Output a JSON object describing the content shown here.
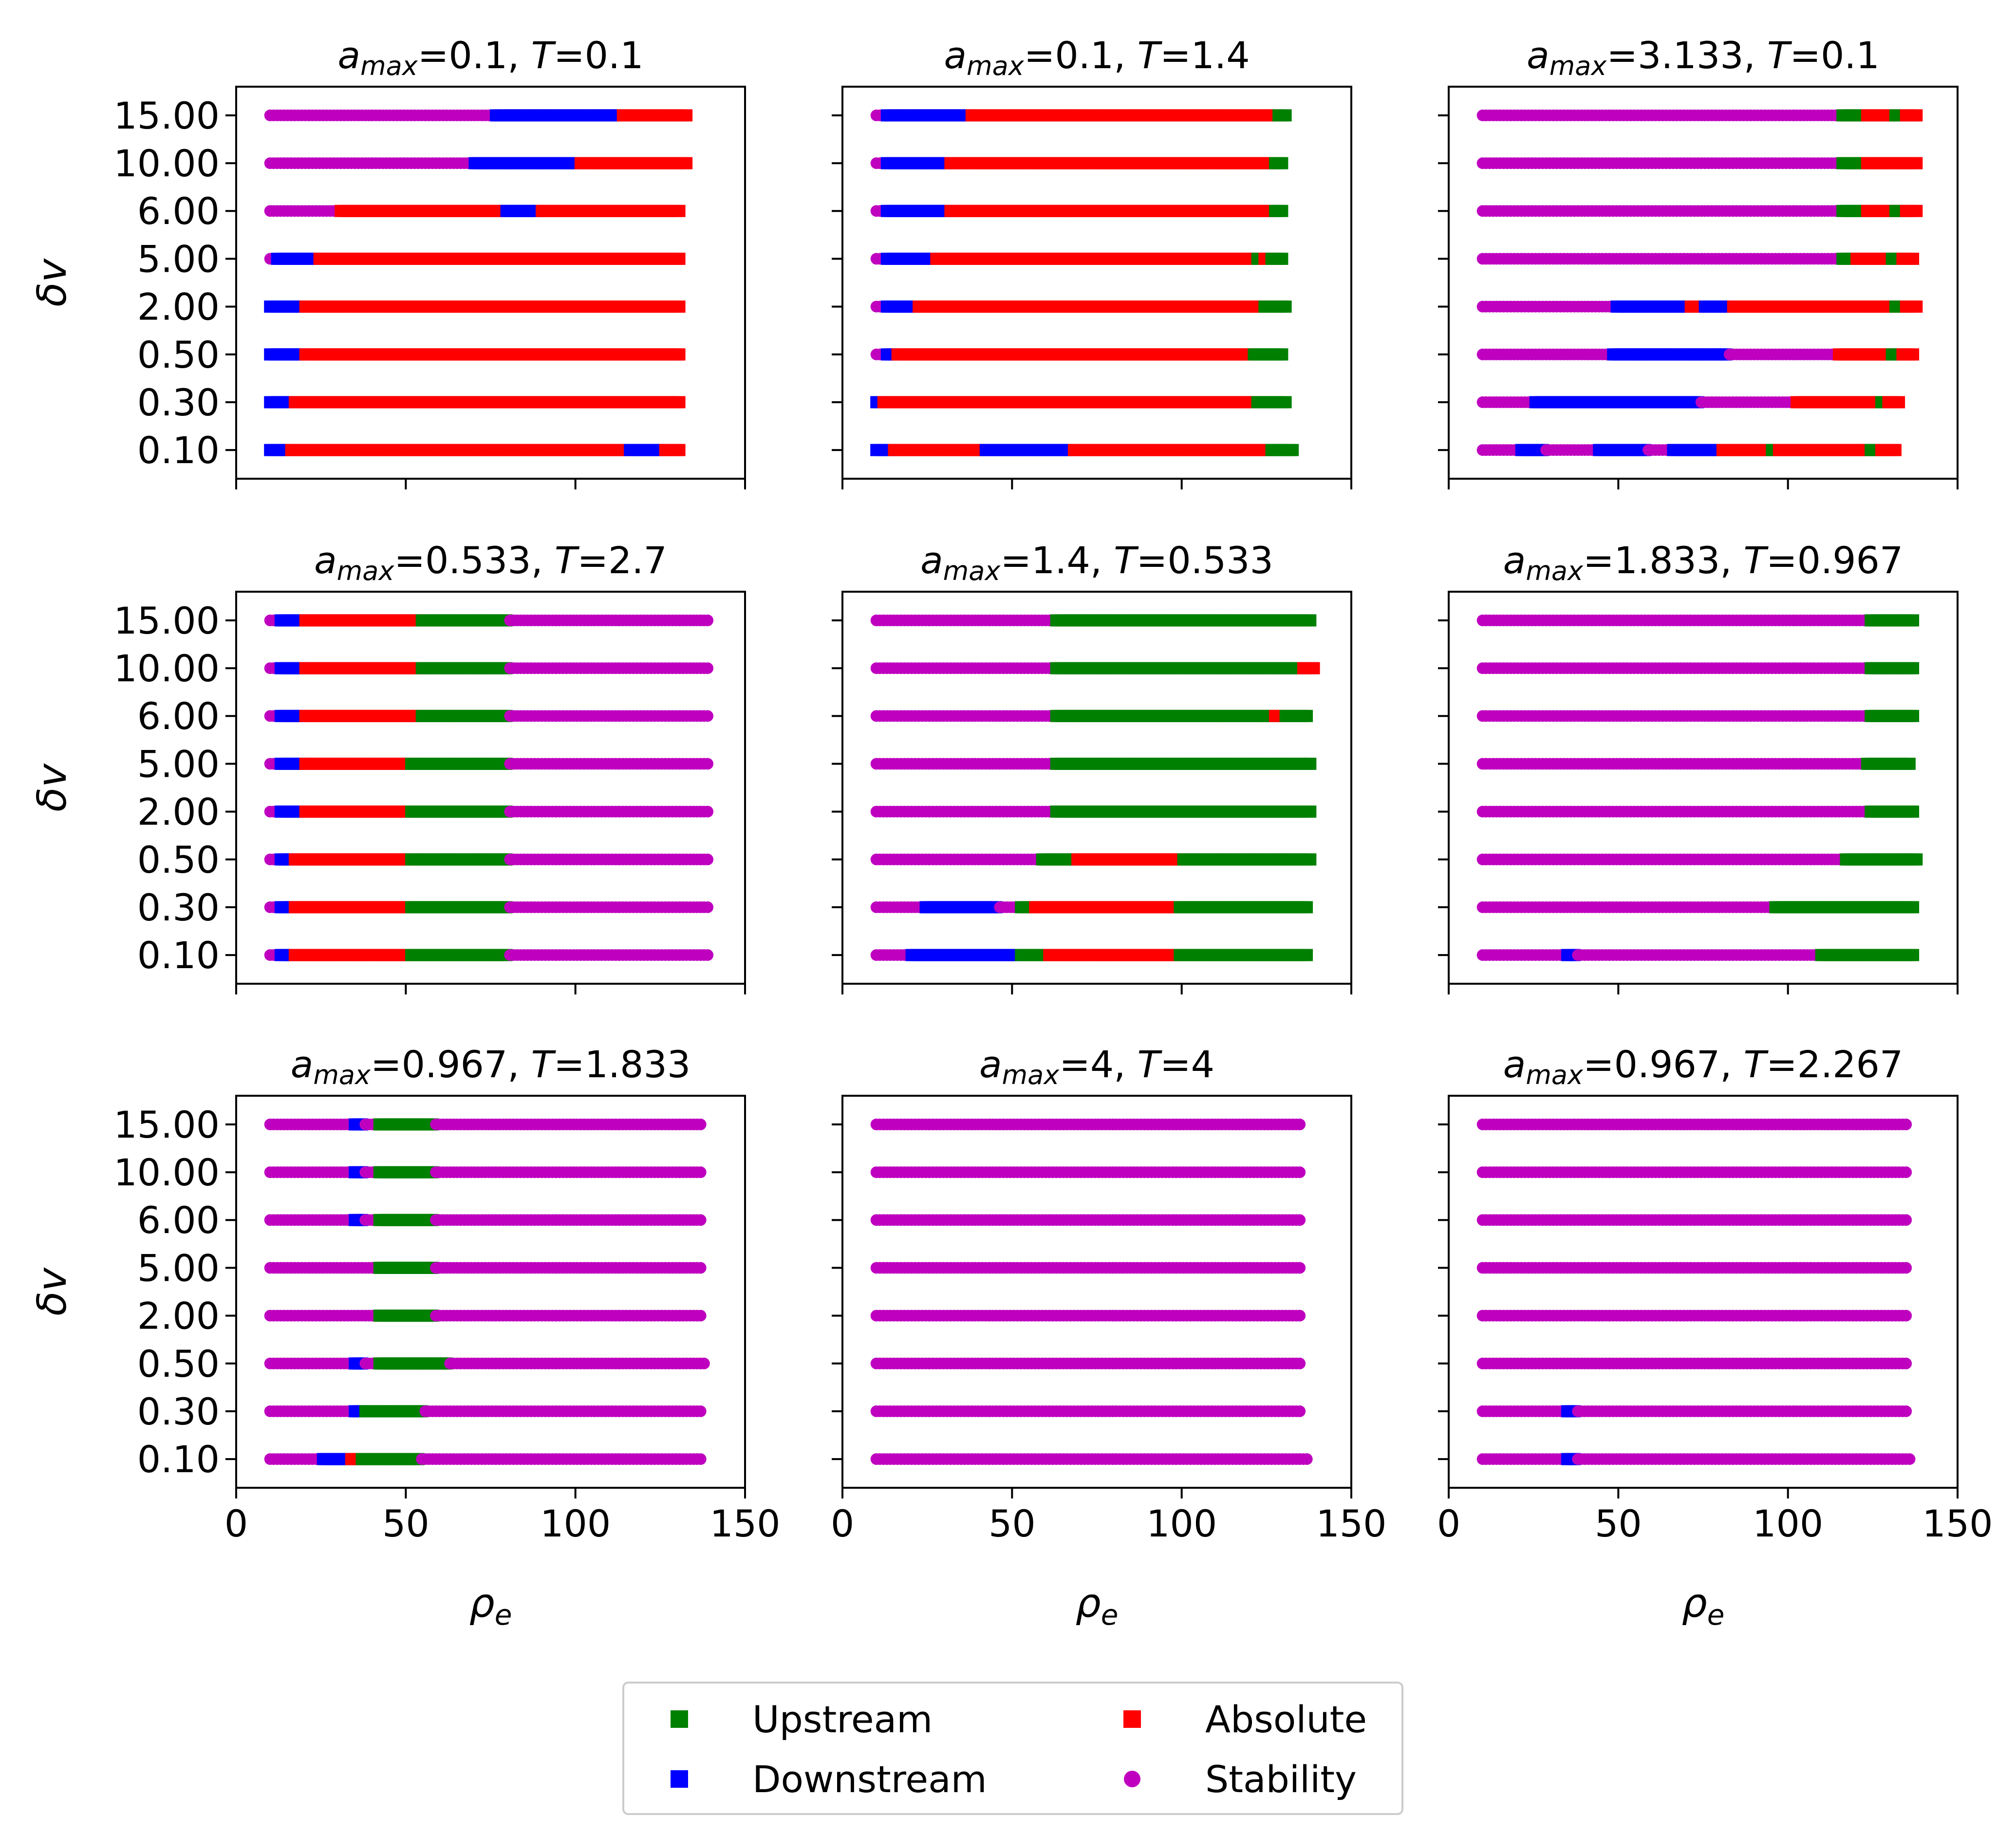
{
  "legend": {
    "columns": 2,
    "items": [
      {
        "label": "Upstream",
        "marker": "square",
        "color": "#008000"
      },
      {
        "label": "Absolute",
        "marker": "square",
        "color": "#ff0000"
      },
      {
        "label": "Downstream",
        "marker": "square",
        "color": "#0000ff"
      },
      {
        "label": "Stability",
        "marker": "circle",
        "color": "#bf00bf"
      }
    ],
    "placement": "bottom-center"
  },
  "chart_data": [
    {
      "type": "scatter",
      "title_var": "a",
      "title_sub": "max",
      "title_a": "0.1",
      "title_tvar": "T",
      "title_t": "0.1",
      "xlabel": "ρ",
      "xlabel_sub": "e",
      "ylabel": "δv",
      "show_xlabel": false,
      "show_xticklabels": false,
      "show_ylabel": true,
      "show_yticklabels": true,
      "rows": [
        "DDDDDDAAAAAAAAAAAAAAAAAAAAAAAAAAAAAAAAAAAAAAAAAAAAAAAAAAAAAAAAAAAAAAAAAAAAAAAAAAAAAAAAAAAAAAAAAAAAAAAADDDDDDDDDDAAAAA",
        "DDDDDDDAAAAAAAAAAAAAAAAAAAAAAAAAAAAAAAAAAAAAAAAAAAAAAAAAAAAAAAAAAAAAAAAAAAAAAAAAAAAAAAAAAAAAAAAAAAAAAAAAAAAAAAAAAAAAA",
        "DDDDDDDDDDAAAAAAAAAAAAAAAAAAAAAAAAAAAAAAAAAAAAAAAAAAAAAAAAAAAAAAAAAAAAAAAAAAAAAAAAAAAAAAAAAAAAAAAAAAAAAAAAAAAAAAAAAAA",
        "DDDDDDDDDDAAAAAAAAAAAAAAAAAAAAAAAAAAAAAAAAAAAAAAAAAAAAAAAAAAAAAAAAAAAAAAAAAAAAAAAAAAAAAAAAAAAAAAAAAAAAAAAAAAAAAAAAAAA",
        "SSDDDDDDDDDDDDAAAAAAAAAAAAAAAAAAAAAAAAAAAAAAAAAAAAAAAAAAAAAAAAAAAAAAAAAAAAAAAAAAAAAAAAAAAAAAAAAAAAAAAAAAAAAAAAAAAAAAA",
        "SSSSSSSSSSSSSSSSSSSSAAAAAAAAAAAAAAAAAAAAAAAAAAAAAAAAAAAAAAAAAAAAAAADDDDDDDDDDAAAAAAAAAAAAAAAAAAAAAAAAAAAAAAAAAAAAAAAA",
        "SSSSSSSSSSSSSSSSSSSSSSSSSSSSSSSSSSSSSSSSSSSSSSSSSSSSSSSSSSDDDDDDDDDDDDDDDDDDDDDDDDDDDDDDAAAAAAAAAAAAAAAAAAAAAAAAAAAAAAA",
        "SSSSSSSSSSSSSSSSSSSSSSSSSSSSSSSSSSSSSSSSSSSSSSSSSSSSSSSSSSSSSSSSDDDDDDDDDDDDDDDDDDDDDDDDDDDDDDDDDDDDAAAAAAAAAAAAAAAAAAA"
      ]
    },
    {
      "type": "scatter",
      "title_var": "a",
      "title_sub": "max",
      "title_a": "0.1",
      "title_tvar": "T",
      "title_t": "1.4",
      "xlabel": "ρ",
      "xlabel_sub": "e",
      "ylabel": "δv",
      "show_xlabel": false,
      "show_xticklabels": false,
      "show_ylabel": false,
      "show_yticklabels": false,
      "rows": [
        "DDDDDAAAAAAAAAAAAAAAAAAAAAAAAAADDDDDDDDDDDDDDDDDDDDDDDDDAAAAAAAAAAAAAAAAAAAAAAAAAAAAAAAAAAAAAAAAAAAAAAAAAAAAAAAAUUUUUUU",
        "DDAAAAAAAAAAAAAAAAAAAAAAAAAAAAAAAAAAAAAAAAAAAAAAAAAAAAAAAAAAAAAAAAAAAAAAAAAAAAAAAAAAAAAAAAAAAAAAAAAAAAAAAAAAUUUUUUUUU",
        "SSSDDDAAAAAAAAAAAAAAAAAAAAAAAAAAAAAAAAAAAAAAAAAAAAAAAAAAAAAAAAAAAAAAAAAAAAAAAAAAAAAAAAAAAAAAAAAAAAAAAAAAAAAUUUUUUUUU",
        "SSSDDDDDDDDDAAAAAAAAAAAAAAAAAAAAAAAAAAAAAAAAAAAAAAAAAAAAAAAAAAAAAAAAAAAAAAAAAAAAAAAAAAAAAAAAAAAAAAAAAAAAAAAAAAUUUUUUU",
        "SSSDDDDDDDDDDDDDDAAAAAAAAAAAAAAAAAAAAAAAAAAAAAAAAAAAAAAAAAAAAAAAAAAAAAAAAAAAAAAAAAAAAAAAAAAAAAAAAAAAAAAAAAAAUUAAUUUU",
        "SSSDDDDDDDDDDDDDDDDDDAAAAAAAAAAAAAAAAAAAAAAAAAAAAAAAAAAAAAAAAAAAAAAAAAAAAAAAAAAAAAAAAAAAAAAAAAAAAAAAAAAAAAAAAAAAAUUU",
        "SSSDDDDDDDDDDDDDDDDDDAAAAAAAAAAAAAAAAAAAAAAAAAAAAAAAAAAAAAAAAAAAAAAAAAAAAAAAAAAAAAAAAAAAAAAAAAAAAAAAAAAAAAAAAAAAAUUU",
        "SSSDDDDDDDDDDDDDDDDDDDDDDDDAAAAAAAAAAAAAAAAAAAAAAAAAAAAAAAAAAAAAAAAAAAAAAAAAAAAAAAAAAAAAAAAAAAAAAAAAAAAAAAAAAAAAAAUUU"
      ]
    },
    {
      "type": "scatter",
      "title_var": "a",
      "title_sub": "max",
      "title_a": "3.133",
      "title_tvar": "T",
      "title_t": "0.1",
      "xlabel": "ρ",
      "xlabel_sub": "e",
      "ylabel": "δv",
      "show_xlabel": false,
      "show_xticklabels": false,
      "show_ylabel": false,
      "show_yticklabels": false,
      "rows": [
        "SSSSSSSSSSSDDDDDDDSSSSSSSSSSSSSSSDDDDDDDDDDDDDDSSSSSSSDDDDDDDDDDDDDDAAAAAAAAAAAAAAUUAAAAAAAAAAAAAAAAAAAAAAAAAAUUUAAAAA",
        "SSSSSSSSSSSSSSSDDDDDDDDDDDDDDDDDDDDDDDDDDDDDDDDDDDDDDDDDDDDDDDSSSSSSSSSSSSSSSSSSSSSSSSSSSAAAAAAAAAAAAAAAAAAAAAAAAUUAAAA",
        "SSSSSSSSSSSSSSSSSSSSSSSSSSSSSSSSSSSSSDDDDDDDDDDDDDDDDDDDDDDDDDDDDDDDDDSSSSSSSSSSSSSSSSSSSSSSSSSSSSSSSAAAAAAAAAAAAAAAUUUAAAA",
        "SSSSSSSSSSSSSSSSSSSSSSSSSSSSSSSSSSSSSSDDDDDDDDDDDDDDDDDDDDDAAAADDDDDDDDAAAAAAAAAAAAAAAAAAAAAAAAAAAAAAAAAAAAAAAAAAAAAAUUUAAAA",
        "SSSSSSSSSSSSSSSSSSSSSSSSSSSSSSSSSSSSSSSSSSSSSSSSSSSSSSSSSSSSSSSSSSSSSSSSSSSSSSSSSSSSSSSSSSSSSSSSSSSSSSUUUUAAAAAAAAAAUUUAAAA",
        "SSSSSSSSSSSSSSSSSSSSSSSSSSSSSSSSSSSSSSSSSSSSSSSSSSSSSSSSSSSSSSSSSSSSSSSSSSSSSSSSSSSSSSSSSSSSSSSSSSSSSSUUUUUUUAAAAAAAAUUUAAAA",
        "SSSSSSSSSSSSSSSSSSSSSSSSSSSSSSSSSSSSSSSSSSSSSSSSSSSSSSSSSSSSSSSSSSSSSSSSSSSSSSSSSSSSSSSSSSSSSSSSSSSSSSUUUUUUUAAAAAAAAAAAAAAA",
        "SSSSSSSSSSSSSSSSSSSSSSSSSSSSSSSSSSSSSSSSSSSSSSSSSSSSSSSSSSSSSSSSSSSSSSSSSSSSSSSSSSSSSSSSSSSSSSSSSSSSSSUUUUUUUAAAAAAAAUUUAAAA"
      ]
    },
    {
      "type": "scatter",
      "title_var": "a",
      "title_sub": "max",
      "title_a": "0.533",
      "title_tvar": "T",
      "title_t": "2.7",
      "xlabel": "ρ",
      "xlabel_sub": "e",
      "ylabel": "δv",
      "show_xlabel": false,
      "show_xticklabels": false,
      "show_ylabel": true,
      "show_yticklabels": true,
      "rows": [
        "SSSDDDDAAAAAAAAAAAAAAAAAAAAAAAAAAAAAAAAAUUUUUUUUUUUUUUUUUUUUUUUUUUUUSSSSSSSSSSSSSSSSSSSSSSSSSSSSSSSSSSSSSSSSSSSSSSSSSSSSSSSSS",
        "SSSDDDDAAAAAAAAAAAAAAAAAAAAAAAAAAAAAAAAAUUUUUUUUUUUUUUUUUUUUUUUUUUUUSSSSSSSSSSSSSSSSSSSSSSSSSSSSSSSSSSSSSSSSSSSSSSSSSSSSSSSSS",
        "SSSDDDDAAAAAAAAAAAAAAAAAAAAAAAAAAAAAAAAAUUUUUUUUUUUUUUUUUUUUUUUUUUUUSSSSSSSSSSSSSSSSSSSSSSSSSSSSSSSSSSSSSSSSSSSSSSSSSSSSSSSSS",
        "SSSDDDDDDDAAAAAAAAAAAAAAAAAAAAAAAAAAAAAAUUUUUUUUUUUUUUUUUUUUUUUUUUUUSSSSSSSSSSSSSSSSSSSSSSSSSSSSSSSSSSSSSSSSSSSSSSSSSSSSSSSSS",
        "SSSDDDDDDDAAAAAAAAAAAAAAAAAAAAAAAAAAAAAAUUUUUUUUUUUUUUUUUUUUUUUUUUUUSSSSSSSSSSSSSSSSSSSSSSSSSSSSSSSSSSSSSSSSSSSSSSSSSSSSSSSSS",
        "SSSDDDDDDDAAAAAAAAAAAAAAAAAAAAAAAAAAAAAAAAAUUUUUUUUUUUUUUUUUUUUUUUUUSSSSSSSSSSSSSSSSSSSSSSSSSSSSSSSSSSSSSSSSSSSSSSSSSSSSSSSSS",
        "SSSDDDDDDDAAAAAAAAAAAAAAAAAAAAAAAAAAAAAAAAAUUUUUUUUUUUUUUUUUUUUUUUUUSSSSSSSSSSSSSSSSSSSSSSSSSSSSSSSSSSSSSSSSSSSSSSSSSSSSSSSSS",
        "SSSDDDDDDDAAAAAAAAAAAAAAAAAAAAAAAAAAAAAAAAAUUUUUUUUUUUUUUUUUUUUUUUUUSSSSSSSSSSSSSSSSSSSSSSSSSSSSSSSSSSSSSSSSSSSSSSSSSSSSSSSSS"
      ]
    },
    {
      "type": "scatter",
      "title_var": "a",
      "title_sub": "max",
      "title_a": "1.4",
      "title_tvar": "T",
      "title_t": "0.533",
      "xlabel": "ρ",
      "xlabel_sub": "e",
      "ylabel": "δv",
      "show_xlabel": false,
      "show_xticklabels": false,
      "show_ylabel": false,
      "show_yticklabels": false,
      "rows": [
        "SSSSSSSSSSDDDDDDDDDDDDDDDDDDDDDDDDDDDDDDDUUUUUUUUAAAAAAAAAAAAAAAAAAAAAAAAAAAAAAAAAAAAAUUUUUUUUUUUUUUUUUUUUUUUUUUUUUUUUUUUUU",
        "SSSSSSSSSSSSSSDDDDDDDDDDDDDDDDDDDDDSSSSSSUUUUAAAAAAAAAAAAAAAAAAAAAAAAAAAAAAAAAAAAAAAAAUUUUUUUUUUUUUUUUUUUUUUUUUUUUUUUUUUUUU",
        "SSSSSSSSSSSSSSSSSSSSSSSSSSSSSSSSSSSSSSSSSSSSSSSUUUUUUUUUUAAAAAAAAAAAAAAAAAAAAAAAAAAAAAAUUUUUUUUUUUUUUUUUUUUUUUUUUUUUUUUUUUUU",
        "SSSSSSSSSSSSSSSSSSSSSSSSSSSSSSSSSSSSSSSSSSSSSSSSSSSUUUUUUUUUUUUUUUUUUUUUUUUUUUUUUUUUUUUUUUUUUUUUUUUUUUUUUUUUUUUUUUUUUUUUUUUU",
        "SSSSSSSSSSSSSSSSSSSSSSSSSSSSSSSSSSSSSSSSSSSSSSSSSSSUUUUUUUUUUUUUUUUUUUUUUUUUUUUUUUUUUUUUUUUUUUUUUUUUUUUUUUUUUUUUUUUUUUUUUUUU",
        "SSSSSSSSSSSSSSSSSSSSSSSSSSSSSSSSSSSSSSSSSSSSSSSSSSSUUUUUUUUUUUUUUUUUUUUUUUUUUUUUUUUUUUUUUUUUUUUUUUUUUUUUUUUUUUUUUAAAUUUUUUU",
        "SSSSSSSSSSSSSSSSSSSSSSSSSSSSSSSSSSSSSSSSSSSSSSSSSSSUUUUUUUUUUUUUUUUUUUUUUUUUUUUUUUUUUUUUUUUUUUUUUUUUUUUUUUUUUUUUUUUUUUUUUAAAA",
        "SSSSSSSSSSSSSSSSSSSSSSSSSSSSSSSSSSSSSSSSSSSSSSSSSSSUUUUUUUUUUUUUUUUUUUUUUUUUUUUUUUUUUUUUUUUUUUUUUUUUUUUUUUUUUUUUUUUUUUUUUUUU"
      ]
    },
    {
      "type": "scatter",
      "title_var": "a",
      "title_sub": "max",
      "title_a": "1.833",
      "title_tvar": "T",
      "title_t": "0.967",
      "xlabel": "ρ",
      "xlabel_sub": "e",
      "ylabel": "δv",
      "show_xlabel": false,
      "show_xticklabels": false,
      "show_ylabel": false,
      "show_yticklabels": false,
      "rows": [
        "SSSSSSSSSSSSSSSSSSSSSSSSDDDSSSSSSSSSSSSSSSSSSSSSSSSSSSSSSSSSSSSSSSSSSSSSSSSSSSSSSSSSSSSSSSSSSSSSUUUUUUUUUUUUUUUUUUUUUUUUUUU",
        "SSSSSSSSSSSSSSSSSSSSSSSSSSSSSSSSSSSSSSSSSSSSSSSSSSSSSSSSSSSSSSSSSSSSSSSSSSSSSSSSSSSUUUUUUUUUUUUUUUUUUUUUUUUUUUUUUUUUUUUUUUU",
        "SSSSSSSSSSSSSSSSSSSSSSSSSSSSSSSSSSSSSSSSSSSSSSSSSSSSSSSSSSSSSSSSSSSSSSSSSSSSSSSSSSSSSSSSSSSSSSSSSSSSSSSUUUUUUUUUUUUUUUUUUUUU",
        "SSSSSSSSSSSSSSSSSSSSSSSSSSSSSSSSSSSSSSSSSSSSSSSSSSSSSSSSSSSSSSSSSSSSSSSSSSSSSSSSSSSSSSSSSSSSSSSSSSSSSSSSSSSSSSUUUUUUUUUUUUU",
        "SSSSSSSSSSSSSSSSSSSSSSSSSSSSSSSSSSSSSSSSSSSSSSSSSSSSSSSSSSSSSSSSSSSSSSSSSSSSSSSSSSSSSSSSSSSSSSSSSSSSSSSSSSSSSUUUUUUUUUUUUU",
        "SSSSSSSSSSSSSSSSSSSSSSSSSSSSSSSSSSSSSSSSSSSSSSSSSSSSSSSSSSSSSSSSSSSSSSSSSSSSSSSSSSSSSSSSSSSSSSSSSSSSSSSSSSSSSSUUUUUUUUUUUUU",
        "SSSSSSSSSSSSSSSSSSSSSSSSSSSSSSSSSSSSSSSSSSSSSSSSSSSSSSSSSSSSSSSSSSSSSSSSSSSSSSSSSSSSSSSSSSSSSSSSSSSSSSSSSSSSSSUUUUUUUUUUUUU",
        "SSSSSSSSSSSSSSSSSSSSSSSSSSSSSSSSSSSSSSSSSSSSSSSSSSSSSSSSSSSSSSSSSSSSSSSSSSSSSSSSSSSSSSSSSSSSSSSSSSSSSSSSSSSSSSUUUUUUUUUUUUU"
      ]
    },
    {
      "type": "scatter",
      "title_var": "a",
      "title_sub": "max",
      "title_a": "0.967",
      "title_tvar": "T",
      "title_t": "1.833",
      "xlabel": "ρ",
      "xlabel_sub": "e",
      "ylabel": "δv",
      "show_xlabel": true,
      "show_xticklabels": true,
      "show_ylabel": true,
      "show_yticklabels": true,
      "rows": [
        "SSSSSSSSSSSSSSSDDDDDDDDAAAUUUUUUUUUUUUUUUUUSSSSSSSSSSSSSSSSSSSSSSSSSSSSSSSSSSSSSSSSSSSSSSSSSSSSSSSSSSSSSSSSSSSSSSSSSSSSSSSS",
        "SSSSSSSSSSSSSSSSSSSSSSSSDDDUUUUUUUUUUUUUUUUUSSSSSSSSSSSSSSSSSSSSSSSSSSSSSSSSSSSSSSSSSSSSSSSSSSSSSSSSSSSSSSSSSSSSSSSSSSSSSSS",
        "SSSSSSSSSSSSSSSSSSSSSSSSDDDSSSSUUUUUUUUUUUUUUUUUUUUSSSSSSSSSSSSSSSSSSSSSSSSSSSSSSSSSSSSSSSSSSSSSSSSSSSSSSSSSSSSSSSSSSSSSSSSS",
        "SSSSSSSSSSSSSSSSSSSSSSSSSSSSSSSUUUUUUUUUUUUUUUUSSSSSSSSSSSSSSSSSSSSSSSSSSSSSSSSSSSSSSSSSSSSSSSSSSSSSSSSSSSSSSSSSSSSSSSSSSSS",
        "SSSSSSSSSSSSSSSSSSSSSSSSSSSSSSSUUUUUUUUUUUUUUUUSSSSSSSSSSSSSSSSSSSSSSSSSSSSSSSSSSSSSSSSSSSSSSSSSSSSSSSSSSSSSSSSSSSSSSSSSSSS",
        "SSSSSSSSSSSSSSSSSSSSSSSSDDDSSSSUUUUUUUUUUUUUUUUSSSSSSSSSSSSSSSSSSSSSSSSSSSSSSSSSSSSSSSSSSSSSSSSSSSSSSSSSSSSSSSSSSSSSSSSSSSS",
        "SSSSSSSSSSSSSSSSSSSSSSSSDDDSSSSUUUUUUUUUUUUUUUUSSSSSSSSSSSSSSSSSSSSSSSSSSSSSSSSSSSSSSSSSSSSSSSSSSSSSSSSSSSSSSSSSSSSSSSSSSSS",
        "SSSSSSSSSSSSSSSSSSSSSSSSDDDSSSSUUUUUUUUUUUUUUUUSSSSSSSSSSSSSSSSSSSSSSSSSSSSSSSSSSSSSSSSSSSSSSSSSSSSSSSSSSSSSSSSSSSSSSSSSSSS"
      ]
    },
    {
      "type": "scatter",
      "title_var": "a",
      "title_sub": "max",
      "title_a": "4",
      "title_tvar": "T",
      "title_t": "4",
      "xlabel": "ρ",
      "xlabel_sub": "e",
      "ylabel": "δv",
      "show_xlabel": true,
      "show_xticklabels": true,
      "show_ylabel": false,
      "show_yticklabels": false,
      "rows": [
        "SSSSSSSSSSSSSSSSSSSSSSSSSSSSSSSSSSSSSSSSSSSSSSSSSSSSSSSSSSSSSSSSSSSSSSSSSSSSSSSSSSSSSSSSSSSSSSSSSSSSSSSSSSSSSSSSSSSSSSSSSSS",
        "SSSSSSSSSSSSSSSSSSSSSSSSSSSSSSSSSSSSSSSSSSSSSSSSSSSSSSSSSSSSSSSSSSSSSSSSSSSSSSSSSSSSSSSSSSSSSSSSSSSSSSSSSSSSSSSSSSSSSSSSS",
        "SSSSSSSSSSSSSSSSSSSSSSSSSSSSSSSSSSSSSSSSSSSSSSSSSSSSSSSSSSSSSSSSSSSSSSSSSSSSSSSSSSSSSSSSSSSSSSSSSSSSSSSSSSSSSSSSSSSSSSSSS",
        "SSSSSSSSSSSSSSSSSSSSSSSSSSSSSSSSSSSSSSSSSSSSSSSSSSSSSSSSSSSSSSSSSSSSSSSSSSSSSSSSSSSSSSSSSSSSSSSSSSSSSSSSSSSSSSSSSSSSSSSSS",
        "SSSSSSSSSSSSSSSSSSSSSSSSSSSSSSSSSSSSSSSSSSSSSSSSSSSSSSSSSSSSSSSSSSSSSSSSSSSSSSSSSSSSSSSSSSSSSSSSSSSSSSSSSSSSSSSSSSSSSSSSS",
        "SSSSSSSSSSSSSSSSSSSSSSSSSSSSSSSSSSSSSSSSSSSSSSSSSSSSSSSSSSSSSSSSSSSSSSSSSSSSSSSSSSSSSSSSSSSSSSSSSSSSSSSSSSSSSSSSSSSSSSSSS",
        "SSSSSSSSSSSSSSSSSSSSSSSSSSSSSSSSSSSSSSSSSSSSSSSSSSSSSSSSSSSSSSSSSSSSSSSSSSSSSSSSSSSSSSSSSSSSSSSSSSSSSSSSSSSSSSSSSSSSSSSSS",
        "SSSSSSSSSSSSSSSSSSSSSSSSSSSSSSSSSSSSSSSSSSSSSSSSSSSSSSSSSSSSSSSSSSSSSSSSSSSSSSSSSSSSSSSSSSSSSSSSSSSSSSSSSSSSSSSSSSSSSSSSS"
      ]
    },
    {
      "type": "scatter",
      "title_var": "a",
      "title_sub": "max",
      "title_a": "0.967",
      "title_tvar": "T",
      "title_t": "2.267",
      "xlabel": "ρ",
      "xlabel_sub": "e",
      "ylabel": "δv",
      "show_xlabel": true,
      "show_xticklabels": true,
      "show_ylabel": false,
      "show_yticklabels": false,
      "rows": [
        "SSSSSSSSSSSSSSSSSSSSSSSSDDDSSSSSSSSSSSSSSSSSSSSSSSSSSSSSSSSSSSSSSSSSSSSSSSSSSSSSSSSSSSSSSSSSSSSSSSSSSSSSSSSSSSSSSSSSSSSSSS",
        "SSSSSSSSSSSSSSSSSSSSSSSSDDDSSSSSSSSSSSSSSSSSSSSSSSSSSSSSSSSSSSSSSSSSSSSSSSSSSSSSSSSSSSSSSSSSSSSSSSSSSSSSSSSSSSSSSSSSSSSSS",
        "SSSSSSSSSSSSSSSSSSSSSSSSSSSSSSSSSSSSSSSSSSSSSSSSSSSSSSSSSSSSSSSSSSSSSSSSSSSSSSSSSSSSSSSSSSSSSSSSSSSSSSSSSSSSSSSSSSSSSSSSS",
        "SSSSSSSSSSSSSSSSSSSSSSSSSSSSSSSSSSSSSSSSSSSSSSSSSSSSSSSSSSSSSSSSSSSSSSSSSSSSSSSSSSSSSSSSSSSSSSSSSSSSSSSSSSSSSSSSSSSSSSSSS",
        "SSSSSSSSSSSSSSSSSSSSSSSSSSSSSSSSSSSSSSSSSSSSSSSSSSSSSSSSSSSSSSSSSSSSSSSSSSSSSSSSSSSSSSSSSSSSSSSSSSSSSSSSSSSSSSSSSSSSSSSSS",
        "SSSSSSSSSSSSSSSSSSSSSSSSSSSSSSSSSSSSSSSSSSSSSSSSSSSSSSSSSSSSSSSSSSSSSSSSSSSSSSSSSSSSSSSSSSSSSSSSSSSSSSSSSSSSSSSSSSSSSSSSS",
        "SSSSSSSSSSSSSSSSSSSSSSSSSSSSSSSSSSSSSSSSSSSSSSSSSSSSSSSSSSSSSSSSSSSSSSSSSSSSSSSSSSSSSSSSSSSSSSSSSSSSSSSSSSSSSSSSSSSSSSSSS",
        "SSSSSSSSSSSSSSSSSSSSSSSSSSSSSSSSSSSSSSSSSSSSSSSSSSSSSSSSSSSSSSSSSSSSSSSSSSSSSSSSSSSSSSSSSSSSSSSSSSSSSSSSSSSSSSSSSSSSSSSSS"
      ]
    }
  ],
  "axes_common": {
    "xlim": [
      0,
      150
    ],
    "xticks": [
      0,
      50,
      100,
      150
    ],
    "xtick_labels": [
      "0",
      "50",
      "100",
      "150"
    ],
    "x_start": 10,
    "x_step": 1.04,
    "ylim_index": [
      -0.6,
      7.6
    ],
    "yticks": [
      "0.10",
      "0.30",
      "0.50",
      "2.00",
      "5.00",
      "6.00",
      "10.00",
      "15.00"
    ],
    "y_scale": "categorical",
    "grid": false,
    "code_legend": {
      "U": "Upstream",
      "D": "Downstream",
      "A": "Absolute",
      "S": "Stability"
    }
  }
}
